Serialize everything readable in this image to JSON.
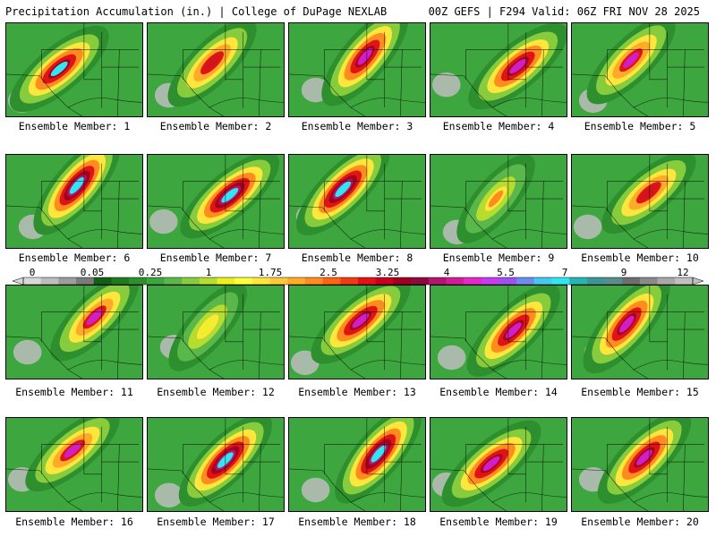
{
  "header": {
    "left": "Precipitation Accumulation (in.) | College of DuPage NEXLAB",
    "right": "00Z GEFS | F294 Valid: 06Z FRI NOV 28 2025"
  },
  "colorbar": {
    "tick_labels": [
      "0",
      "0.05",
      "0.25",
      "1",
      "1.75",
      "2.5",
      "3.25",
      "4",
      "5.5",
      "7",
      "9",
      "12"
    ],
    "colors": [
      "#d8d8d8",
      "#bdbdbd",
      "#9c9c9c",
      "#7a7a7a",
      "#145f14",
      "#1f7a1f",
      "#2e8f2e",
      "#3ea63e",
      "#5ab84a",
      "#86cc3c",
      "#b5dc2e",
      "#e8f020",
      "#ffff3c",
      "#ffe63c",
      "#ffc83c",
      "#ffaa28",
      "#ff8c1e",
      "#ff6414",
      "#f03c14",
      "#e01414",
      "#c8001e",
      "#a0001e",
      "#8c0a3c",
      "#b4146e",
      "#d21e96",
      "#e628c8",
      "#c83cf0",
      "#a050f0",
      "#6e8cf0",
      "#46c8f0",
      "#32e6f0",
      "#28b4b4",
      "#3c9696",
      "#5a8c8c",
      "#6e6e6e",
      "#8a8a8a",
      "#a8a8a8",
      "#c0c0c0"
    ]
  },
  "panels": [
    {
      "label": "Ensemble Member: 1",
      "intensity": "high",
      "peak": "cyan"
    },
    {
      "label": "Ensemble Member: 2",
      "intensity": "moderate",
      "peak": "red"
    },
    {
      "label": "Ensemble Member: 3",
      "intensity": "high",
      "peak": "magenta"
    },
    {
      "label": "Ensemble Member: 4",
      "intensity": "high",
      "peak": "magenta"
    },
    {
      "label": "Ensemble Member: 5",
      "intensity": "moderate",
      "peak": "magenta"
    },
    {
      "label": "Ensemble Member: 6",
      "intensity": "very high",
      "peak": "cyan"
    },
    {
      "label": "Ensemble Member: 7",
      "intensity": "very high",
      "peak": "cyan"
    },
    {
      "label": "Ensemble Member: 8",
      "intensity": "very high",
      "peak": "cyan"
    },
    {
      "label": "Ensemble Member: 9",
      "intensity": "low",
      "peak": "orange"
    },
    {
      "label": "Ensemble Member: 10",
      "intensity": "moderate",
      "peak": "red"
    },
    {
      "label": "Ensemble Member: 11",
      "intensity": "moderate",
      "peak": "magenta"
    },
    {
      "label": "Ensemble Member: 12",
      "intensity": "low",
      "peak": "yellow"
    },
    {
      "label": "Ensemble Member: 13",
      "intensity": "high",
      "peak": "magenta"
    },
    {
      "label": "Ensemble Member: 14",
      "intensity": "high",
      "peak": "magenta"
    },
    {
      "label": "Ensemble Member: 15",
      "intensity": "high",
      "peak": "magenta"
    },
    {
      "label": "Ensemble Member: 16",
      "intensity": "moderate",
      "peak": "magenta"
    },
    {
      "label": "Ensemble Member: 17",
      "intensity": "very high",
      "peak": "cyan"
    },
    {
      "label": "Ensemble Member: 18",
      "intensity": "very high",
      "peak": "cyan"
    },
    {
      "label": "Ensemble Member: 19",
      "intensity": "high",
      "peak": "magenta"
    },
    {
      "label": "Ensemble Member: 20",
      "intensity": "high",
      "peak": "magenta"
    }
  ]
}
